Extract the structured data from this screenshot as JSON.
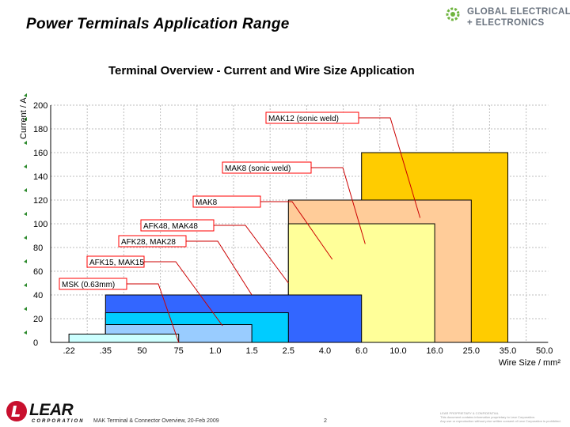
{
  "slide": {
    "title": "Power Terminals Application Range",
    "brand_line1": "GLOBAL ELECTRICAL",
    "brand_line2": "+ ELECTRONICS",
    "footer_text": "MAK Terminal & Connector Overview, 20-Feb 2009",
    "page_number": "2",
    "logo_word": "LEAR",
    "logo_sub": "CORPORATION",
    "confidential_line1": "LEAR PROPRIETARY & CONFIDENTIAL",
    "confidential_line2": "This document contains information proprietary to Lear Corporation.",
    "confidential_line3": "Any use or reproduction without prior written consent of Lear Corporation is prohibited."
  },
  "chart_data": {
    "type": "area",
    "title": "Terminal Overview - Current and Wire Size Application",
    "ylabel": "Current / A",
    "xlabel": "Wire Size / mm²",
    "ylim": [
      0,
      200
    ],
    "yticks": [
      0,
      20,
      40,
      60,
      80,
      100,
      120,
      140,
      160,
      180,
      200
    ],
    "categories": [
      ".22",
      ".35",
      "50",
      "75",
      "1.0",
      "1.5",
      "2.5",
      "4.0",
      "6.0",
      "10.0",
      "16.0",
      "25.0",
      "35.0",
      "50.0"
    ],
    "grid": true,
    "series": [
      {
        "name": "MAK12 (sonic weld)",
        "x_from": 8.0,
        "x_to": 12.0,
        "current": 160,
        "color": "#FFCC00"
      },
      {
        "name": "MAK8 (sonic weld)",
        "x_from": 6.0,
        "x_to": 11.0,
        "current": 120,
        "color": "#FFCC99"
      },
      {
        "name": "MAK8",
        "x_from": 6.0,
        "x_to": 10.0,
        "current": 100,
        "color": "#FFFF99"
      },
      {
        "name": "AFK48, MAK48",
        "x_from": 1.0,
        "x_to": 8.0,
        "current": 40,
        "color": "#3366FF"
      },
      {
        "name": "AFK28, MAK28",
        "x_from": 1.0,
        "x_to": 6.0,
        "current": 25,
        "color": "#00CCFF"
      },
      {
        "name": "AFK15, MAK15",
        "x_from": 1.0,
        "x_to": 5.0,
        "current": 15,
        "color": "#99CCFF"
      },
      {
        "name": "MSK (0.63mm)",
        "x_from": 0.0,
        "x_to": 3.0,
        "current": 7,
        "color": "#CCFFFF"
      }
    ],
    "annotations": [
      {
        "text": "MAK12 (sonic weld)",
        "series": 0
      },
      {
        "text": "MAK8 (sonic weld)",
        "series": 1
      },
      {
        "text": "MAK8",
        "series": 2
      },
      {
        "text": "AFK48, MAK48",
        "series": 3
      },
      {
        "text": "AFK28, MAK28",
        "series": 4
      },
      {
        "text": "AFK15, MAK15",
        "series": 5
      },
      {
        "text": "MSK (0.63mm)",
        "series": 6
      }
    ]
  }
}
